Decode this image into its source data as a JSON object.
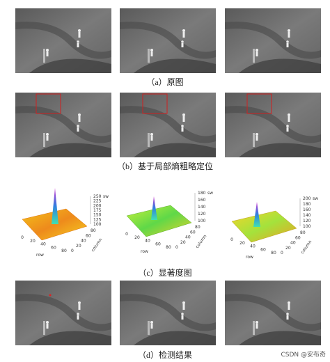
{
  "figure": {
    "captions": [
      "（a）原图",
      "（b）基于局部熵粗略定位",
      "（c）显著度图",
      "（d）检测结果"
    ],
    "plots": [
      {
        "z_label": "sw",
        "x_label": "row",
        "y_label": "column",
        "z_ticks": [
          "250",
          "225",
          "200",
          "175",
          "150",
          "125",
          "100"
        ],
        "x_ticks": [
          "0",
          "20",
          "40",
          "60",
          "80"
        ],
        "y_ticks": [
          "0",
          "20",
          "40",
          "60",
          "80"
        ]
      },
      {
        "z_label": "sw",
        "x_label": "row",
        "y_label": "column",
        "z_ticks": [
          "180",
          "160",
          "140",
          "120",
          "100"
        ],
        "x_ticks": [
          "0",
          "20",
          "40",
          "60",
          "80"
        ],
        "y_ticks": [
          "0",
          "20",
          "40",
          "60",
          "80"
        ]
      },
      {
        "z_label": "sw",
        "x_label": "row",
        "y_label": "column",
        "z_ticks": [
          "200",
          "180",
          "160",
          "140",
          "120",
          "100"
        ],
        "x_ticks": [
          "0",
          "20",
          "40",
          "60",
          "80"
        ],
        "y_ticks": [
          "0",
          "20",
          "40",
          "60",
          "80"
        ]
      }
    ]
  },
  "watermark": "CSDN @安布奇"
}
